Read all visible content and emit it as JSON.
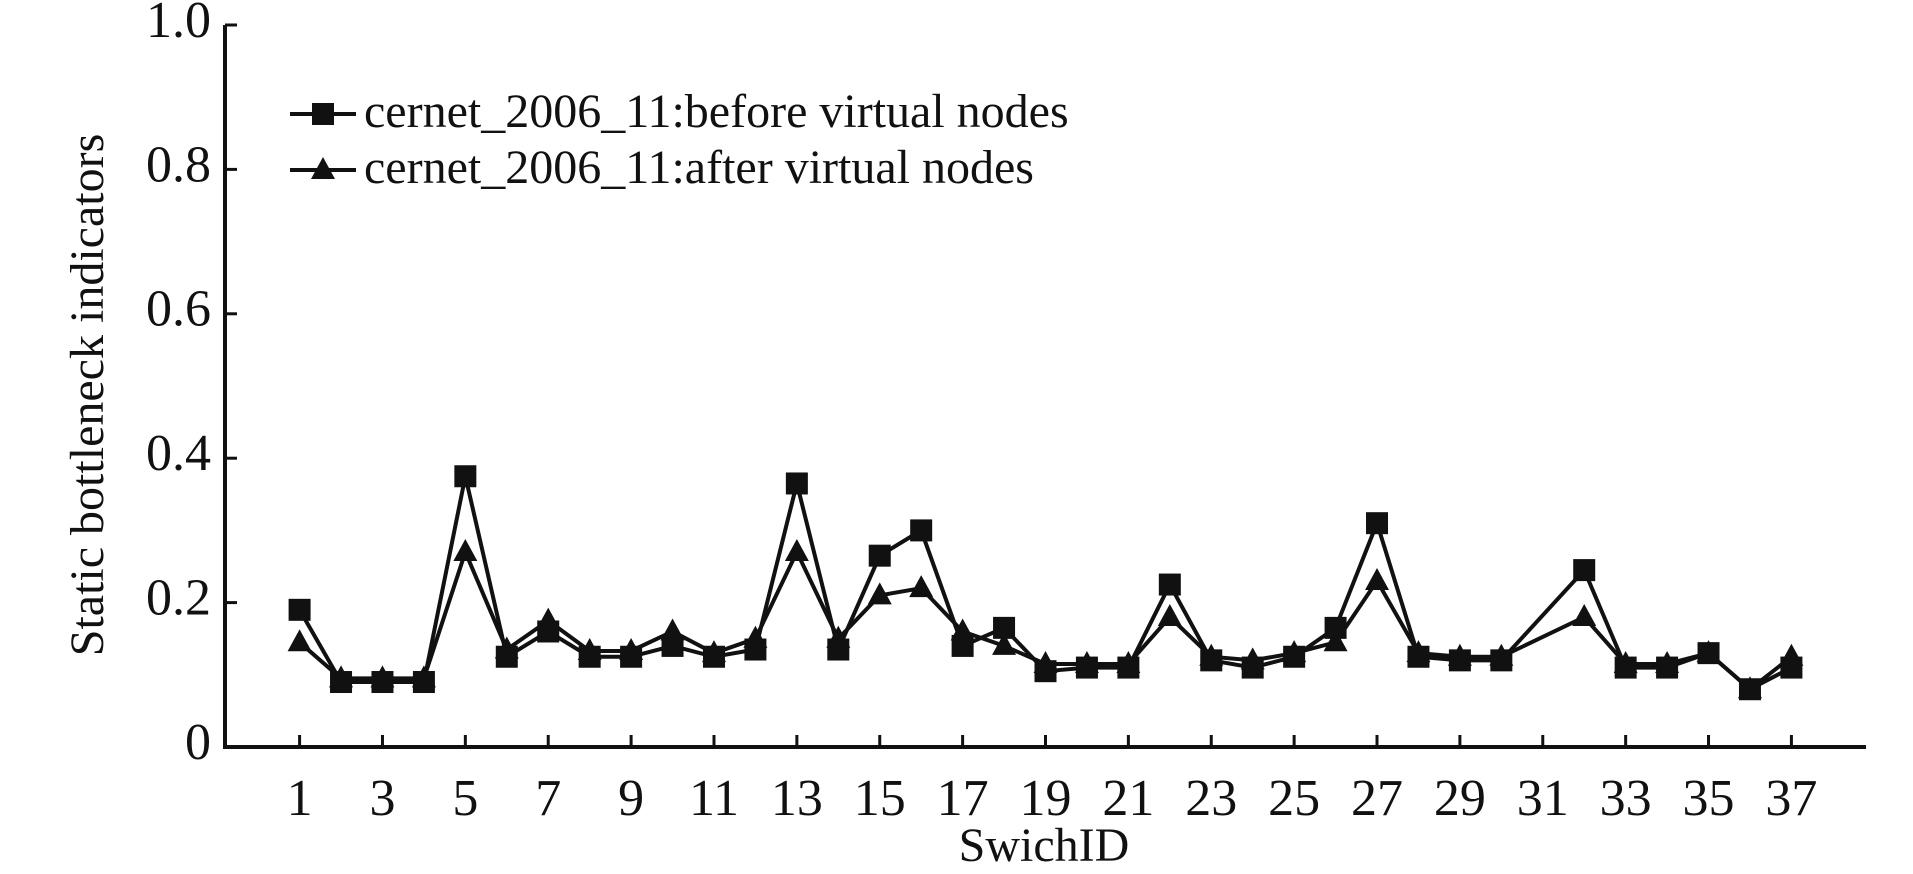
{
  "chart_data": {
    "type": "line",
    "x_label": "SwichID",
    "y_label": "Static bottleneck indicators",
    "x": [
      1,
      2,
      3,
      4,
      5,
      6,
      7,
      8,
      9,
      10,
      11,
      12,
      13,
      14,
      15,
      16,
      17,
      18,
      19,
      20,
      21,
      22,
      23,
      24,
      25,
      26,
      27,
      28,
      29,
      30,
      32,
      33,
      34,
      35,
      36,
      37
    ],
    "series": [
      {
        "name": "cernet_2006_11:before virtual nodes",
        "color": "#111111",
        "marker": "square",
        "values": [
          0.19,
          0.09,
          0.09,
          0.09,
          0.375,
          0.125,
          0.16,
          0.125,
          0.125,
          0.14,
          0.125,
          0.135,
          0.365,
          0.135,
          0.265,
          0.3,
          0.14,
          0.165,
          0.105,
          0.11,
          0.11,
          0.225,
          0.12,
          0.11,
          0.125,
          0.165,
          0.31,
          0.125,
          0.12,
          0.12,
          0.245,
          0.11,
          0.11,
          0.13,
          0.08,
          0.11
        ]
      },
      {
        "name": "cernet_2006_11:after virtual nodes",
        "color": "#111111",
        "marker": "triangle",
        "values": [
          0.145,
          0.095,
          0.095,
          0.095,
          0.27,
          0.135,
          0.175,
          0.133,
          0.133,
          0.16,
          0.13,
          0.15,
          0.27,
          0.15,
          0.21,
          0.22,
          0.16,
          0.14,
          0.115,
          0.115,
          0.115,
          0.18,
          0.125,
          0.12,
          0.13,
          0.145,
          0.23,
          0.13,
          0.125,
          0.125,
          0.18,
          0.115,
          0.115,
          0.13,
          0.08,
          0.125
        ]
      }
    ],
    "xlim": [
      -0.8,
      38.8
    ],
    "xticks": [
      1,
      3,
      5,
      7,
      9,
      11,
      13,
      15,
      17,
      19,
      21,
      23,
      25,
      27,
      29,
      31,
      33,
      35,
      37
    ],
    "ylim": [
      0,
      1
    ],
    "yticks": [
      0,
      0.2,
      0.4,
      0.6,
      0.8,
      {
        "value": 1,
        "label": "1.0"
      }
    ],
    "legend": "upper-left",
    "grid": false
  }
}
